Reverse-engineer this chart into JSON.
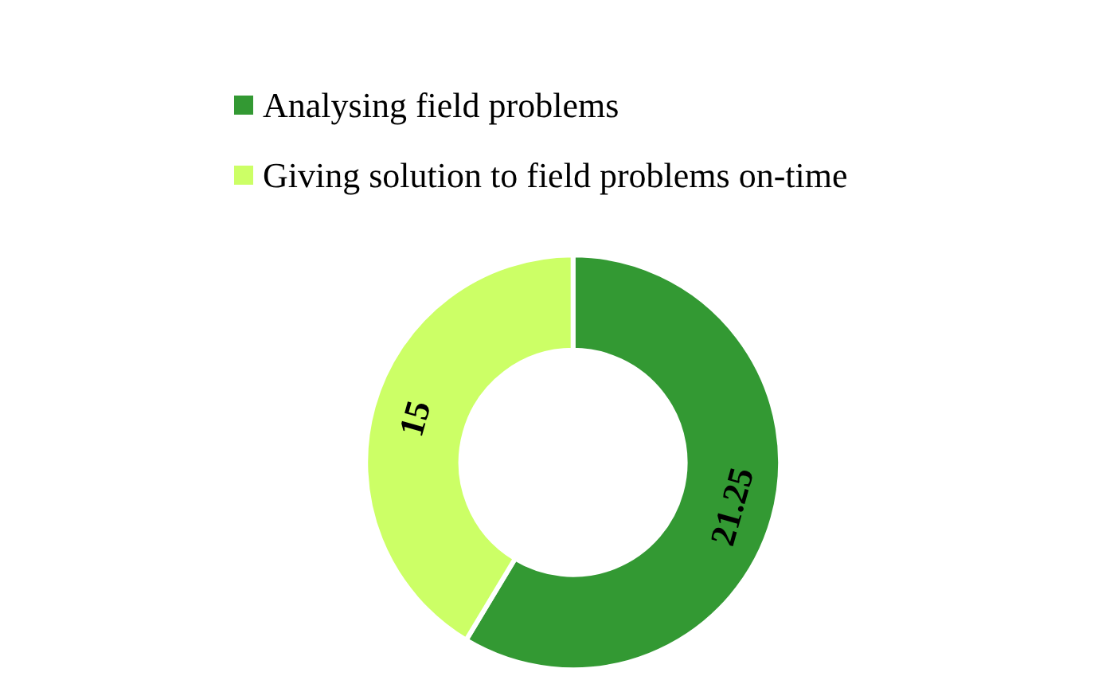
{
  "chart_data": {
    "type": "donut",
    "categories": [
      "Analysing field problems",
      "Giving solution to field problems on-time"
    ],
    "values": [
      21.25,
      15
    ],
    "colors": [
      "#339933",
      "#ccff66"
    ],
    "data_labels": true,
    "legend": "top"
  }
}
